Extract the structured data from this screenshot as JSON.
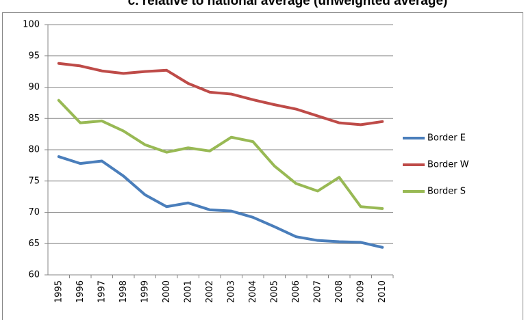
{
  "chart_data": {
    "type": "line",
    "title": "c.    relative to national average (unweighted average)",
    "categories": [
      "1995",
      "1996",
      "1997",
      "1998",
      "1999",
      "2000",
      "2001",
      "2002",
      "2003",
      "2004",
      "2005",
      "2006",
      "2007",
      "2008",
      "2009",
      "2010"
    ],
    "series": [
      {
        "name": "Border E",
        "color": "#4a7ebb",
        "values": [
          78.9,
          77.8,
          78.2,
          75.8,
          72.8,
          70.9,
          71.5,
          70.4,
          70.2,
          69.2,
          67.7,
          66.1,
          65.5,
          65.3,
          65.2,
          64.4
        ]
      },
      {
        "name": "Border W",
        "color": "#be4b48",
        "values": [
          93.8,
          93.4,
          92.6,
          92.2,
          92.5,
          92.7,
          90.6,
          89.2,
          88.9,
          88.0,
          87.2,
          86.5,
          85.4,
          84.3,
          84.0,
          84.5
        ]
      },
      {
        "name": "Border S",
        "color": "#98b954",
        "values": [
          87.9,
          84.3,
          84.6,
          83.0,
          80.8,
          79.6,
          80.3,
          79.8,
          82.0,
          81.3,
          77.4,
          74.6,
          73.4,
          75.6,
          70.9,
          70.6
        ]
      }
    ],
    "ylim": [
      60,
      100
    ],
    "yticks": [
      60,
      65,
      70,
      75,
      80,
      85,
      90,
      95,
      100
    ],
    "grid": true,
    "legend": "right"
  }
}
